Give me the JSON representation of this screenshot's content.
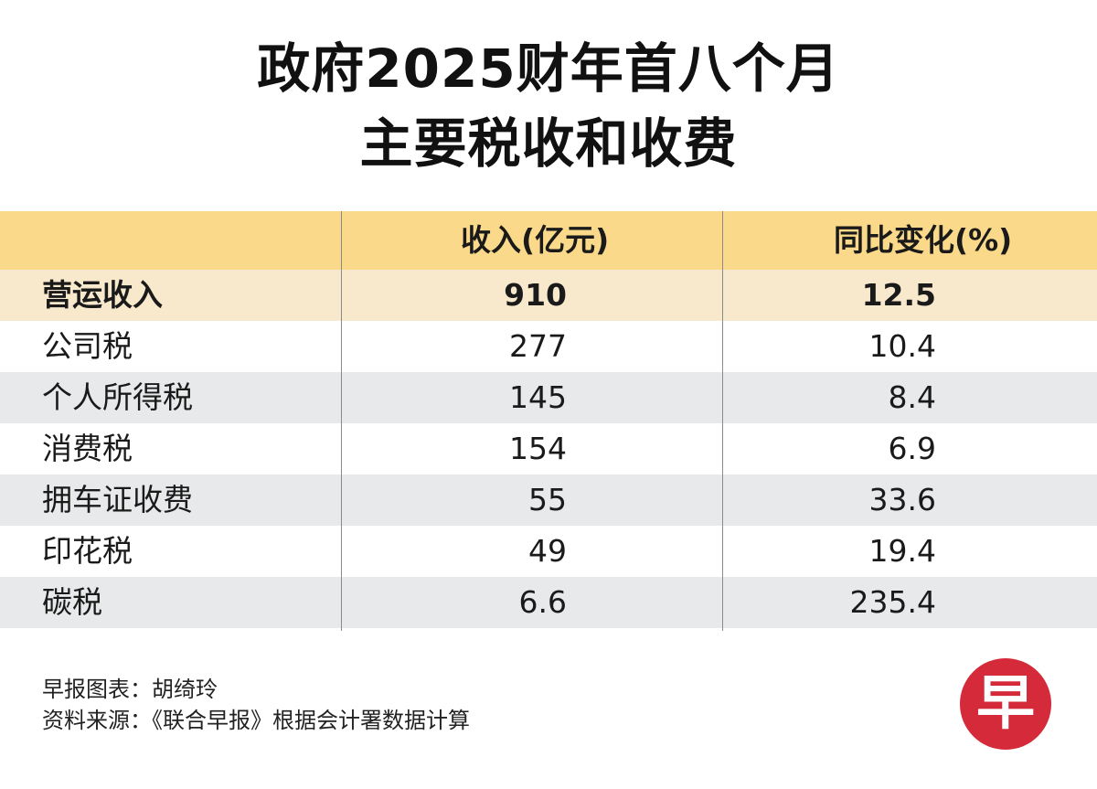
{
  "header": {
    "title_line1": "政府2025财年首八个月",
    "title_line2": "主要税收和收费"
  },
  "table": {
    "columns": [
      "",
      "收入(亿元)",
      "同比变化(%)"
    ],
    "rows": [
      {
        "name": "营运收入",
        "revenue": "910",
        "yoy": "12.5"
      },
      {
        "name": "公司税",
        "revenue": "277",
        "yoy": "10.4"
      },
      {
        "name": "个人所得税",
        "revenue": "145",
        "yoy": "8.4"
      },
      {
        "name": "消费税",
        "revenue": "154",
        "yoy": "6.9"
      },
      {
        "name": "拥车证收费",
        "revenue": "55",
        "yoy": "33.6"
      },
      {
        "name": "印花税",
        "revenue": "49",
        "yoy": "19.4"
      },
      {
        "name": "碳税",
        "revenue": "6.6",
        "yoy": "235.4"
      }
    ]
  },
  "footer": {
    "credit": "早报图表：胡绮玲",
    "source": "资料来源：《联合早报》根据会计署数据计算"
  },
  "logo": {
    "text": "早",
    "color": "#d42a3a"
  },
  "colors": {
    "header_bg": "#fbd98a",
    "highlight_bg": "#f8e9cc",
    "stripe_bg": "#e8e9ea"
  },
  "chart_data": {
    "type": "table",
    "title": "政府2025财年首八个月 主要税收和收费",
    "columns": [
      "",
      "收入(亿元)",
      "同比变化(%)"
    ],
    "categories": [
      "营运收入",
      "公司税",
      "个人所得税",
      "消费税",
      "拥车证收费",
      "印花税",
      "碳税"
    ],
    "series": [
      {
        "name": "收入(亿元)",
        "values": [
          910,
          277,
          145,
          154,
          55,
          49,
          6.6
        ]
      },
      {
        "name": "同比变化(%)",
        "values": [
          12.5,
          10.4,
          8.4,
          6.9,
          33.6,
          19.4,
          235.4
        ]
      }
    ]
  }
}
